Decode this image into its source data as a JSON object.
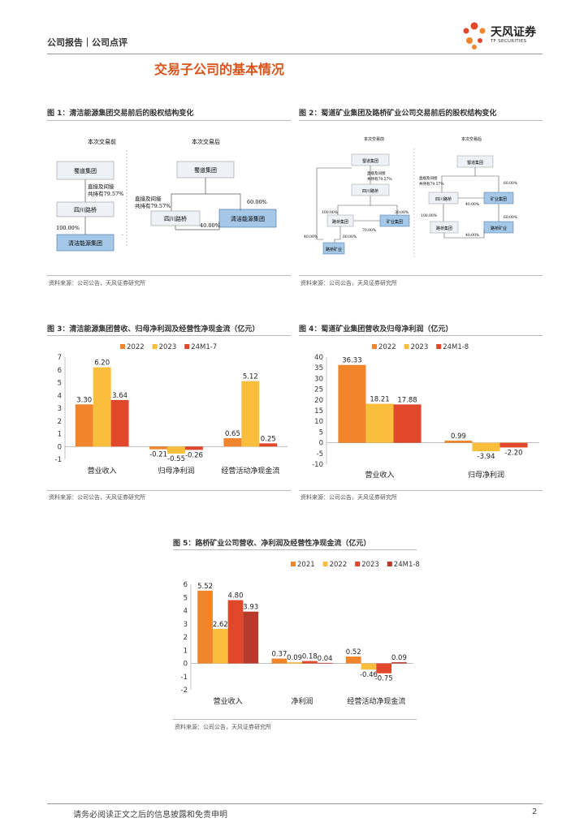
{
  "header": {
    "left": "公司报告｜公司点评",
    "logo_cn": "天风证券",
    "logo_en": "TF SECURITIES"
  },
  "section_title": "交易子公司的基本情况",
  "figures": {
    "fig1": {
      "title": "图 1：清洁能源集团交易前后的股权结构变化",
      "source": "资料来源：公司公告，天风证券研究所",
      "before": {
        "heading": "本次交易前",
        "top": "蜀道集团",
        "edge1": [
          "直接及间接",
          "共持有79.57%"
        ],
        "mid": "四川路桥",
        "edge2": "100.00%",
        "bottom": "清洁能源集团"
      },
      "after": {
        "heading": "本次交易后",
        "top": "蜀道集团",
        "edge_left": [
          "直接及间接",
          "共持有79.57%"
        ],
        "edge_right": "60.00%",
        "left": "四川路桥",
        "right": "清洁能源集团",
        "edge_bottom": "40.00%"
      }
    },
    "fig2": {
      "title": "图 2：蜀道矿业集团及路桥矿业公司交易前后的股权结构变化",
      "source": "资料来源：公司公告，天风证券研究所",
      "before": {
        "heading": "本次交易前",
        "top": "蜀道集团",
        "edge1": [
          "直接及间接",
          "共持有79.57%"
        ],
        "mid": "四川路桥",
        "left": "路桥集团",
        "right": "矿业集团",
        "bottom": "路桥矿业",
        "p_left": "100.00%",
        "p_right": "30.00%",
        "p_mid": "70.00%",
        "p_bl": "40.00%",
        "p_br": "60.00%"
      },
      "after": {
        "heading": "本次交易后",
        "top": "蜀道集团",
        "edge1": [
          "直接及间接",
          "共持有79.57%"
        ],
        "p_top_right": "60.00%",
        "left": "四川路桥",
        "right": "矿业集团",
        "p_mid": "40.00%",
        "p_left_down": "100.00%",
        "p_right_down": "60.00%",
        "bl": "路桥集团",
        "br": "路桥矿业",
        "p_bottom": "40.00%"
      }
    },
    "fig3": {
      "title": "图 3：清洁能源集团营收、归母净利润及经营性净现金流（亿元）",
      "source": "资料来源：公司公告，天风证券研究所"
    },
    "fig4": {
      "title": "图 4：蜀道矿业集团营收及归母净利润（亿元）",
      "source": "资料来源：公司公告，天风证券研究所"
    },
    "fig5": {
      "title": "图 5：路桥矿业公司营收、净利润及经营性净现金流（亿元）",
      "source": "资料来源：公司公告，天风证券研究所"
    }
  },
  "chart_data": [
    {
      "id": "fig3",
      "type": "bar",
      "categories": [
        "营业收入",
        "归母净利润",
        "经营活动净现金流"
      ],
      "series": [
        {
          "name": "2022",
          "values": [
            3.3,
            -0.21,
            0.65
          ],
          "labels": [
            "3.30",
            "-0.21",
            "0.65"
          ],
          "color": "#f0852b"
        },
        {
          "name": "2023",
          "values": [
            6.2,
            -0.55,
            5.12
          ],
          "labels": [
            "6.20",
            "-0.55",
            "5.12"
          ],
          "color": "#f9be3c"
        },
        {
          "name": "24M1-7",
          "values": [
            3.64,
            -0.26,
            0.25
          ],
          "labels": [
            "3.64",
            "-0.26",
            "0.25"
          ],
          "color": "#e0472b"
        }
      ],
      "ylim": [
        -1,
        7
      ],
      "yticks": [
        "7",
        "6",
        "5",
        "4",
        "3",
        "2",
        "1",
        "0",
        "-1"
      ],
      "legend": "top"
    },
    {
      "id": "fig4",
      "type": "bar",
      "categories": [
        "营业收入",
        "归母净利润"
      ],
      "series": [
        {
          "name": "2022",
          "values": [
            36.33,
            0.99
          ],
          "labels": [
            "36.33",
            "0.99"
          ],
          "color": "#f0852b"
        },
        {
          "name": "2023",
          "values": [
            18.21,
            -3.94
          ],
          "labels": [
            "18.21",
            "-3.94"
          ],
          "color": "#f9be3c"
        },
        {
          "name": "24M1-8",
          "values": [
            17.88,
            -2.2
          ],
          "labels": [
            "17.88",
            "-2.20"
          ],
          "color": "#e0472b"
        }
      ],
      "ylim": [
        -10,
        40
      ],
      "yticks": [
        "40",
        "35",
        "30",
        "25",
        "20",
        "15",
        "10",
        "5",
        "0",
        "-5",
        "-10"
      ],
      "legend": "top"
    },
    {
      "id": "fig5",
      "type": "bar",
      "categories": [
        "营业收入",
        "净利润",
        "经营活动净现金流"
      ],
      "series": [
        {
          "name": "2021",
          "values": [
            5.52,
            0.37,
            0.52
          ],
          "labels": [
            "5.52",
            "0.37",
            "0.52"
          ],
          "color": "#f0852b"
        },
        {
          "name": "2022",
          "values": [
            2.62,
            0.09,
            -0.46
          ],
          "labels": [
            "2.62",
            "0.09",
            "-0.46"
          ],
          "color": "#f9be3c"
        },
        {
          "name": "2023",
          "values": [
            4.8,
            0.18,
            -0.75
          ],
          "labels": [
            "4.80",
            "0.18",
            "-0.75"
          ],
          "color": "#e0472b"
        },
        {
          "name": "24M1-8",
          "values": [
            3.93,
            0.04,
            0.09
          ],
          "labels": [
            "3.93",
            "0.04",
            "0.09"
          ],
          "color": "#b83a2b"
        }
      ],
      "ylim": [
        -2,
        6
      ],
      "yticks": [
        "6",
        "5",
        "4",
        "3",
        "2",
        "1",
        "0",
        "-1",
        "-2"
      ],
      "legend": "top"
    }
  ],
  "footer": {
    "disclaimer": "请务必阅读正文之后的信息披露和免责申明",
    "page": "2"
  },
  "colors": {
    "accent": "#d9541a",
    "box_fill": "#eef1f6",
    "box_highlight": "#5b9bd5"
  }
}
